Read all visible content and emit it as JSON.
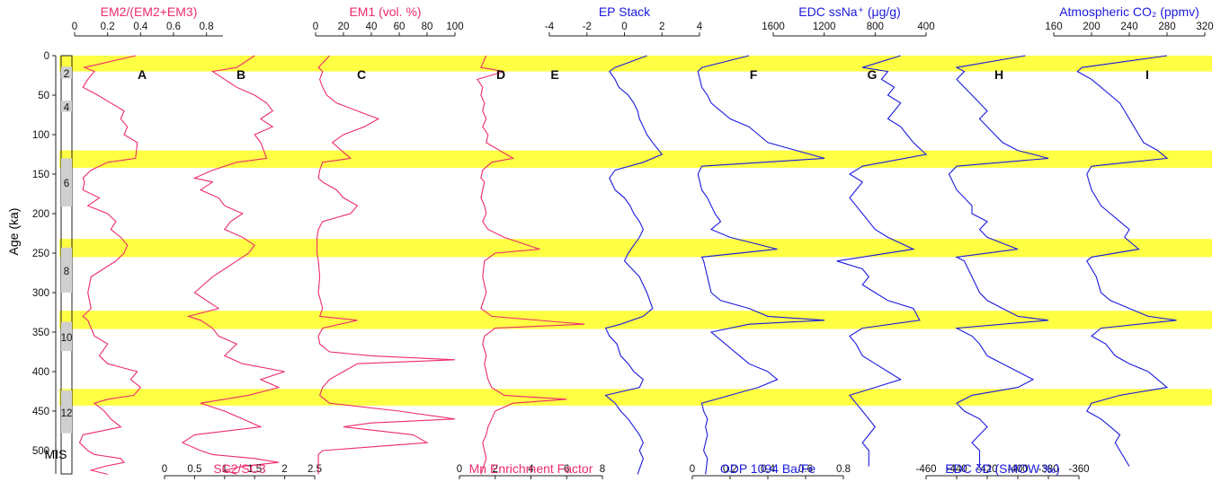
{
  "colors": {
    "pink": "#ee2b6c",
    "blue": "#1a1adf",
    "band": "#ffff44",
    "mis_gray": "#cfcfcf"
  },
  "chart_data": {
    "type": "line",
    "ylabel": "Age (ka)",
    "yticks": [
      "0",
      "50",
      "100",
      "150",
      "200",
      "250",
      "300",
      "350",
      "400",
      "450",
      "500"
    ],
    "ylim": [
      0,
      530
    ],
    "interglacial_bands": [
      [
        0,
        20
      ],
      [
        120,
        142
      ],
      [
        232,
        255
      ],
      [
        323,
        346
      ],
      [
        422,
        443
      ]
    ],
    "mis": {
      "label": "MIS",
      "stages": [
        "2",
        "4",
        "6",
        "8",
        "10",
        "12"
      ]
    },
    "panels": [
      {
        "letter": "A",
        "top_title": "EM2/(EM2+EM3)",
        "top_ticks": [
          "0",
          "0.2",
          "0.4",
          "0.6",
          "0.8"
        ],
        "xlim": [
          0,
          0.9
        ],
        "color": "pink",
        "x": [
          0.37,
          0.06,
          0.12,
          0.08,
          0.05,
          0.14,
          0.22,
          0.3,
          0.28,
          0.32,
          0.3,
          0.38,
          0.37,
          0.2,
          0.1,
          0.05,
          0.06,
          0.05,
          0.15,
          0.08,
          0.2,
          0.25,
          0.22,
          0.28,
          0.32,
          0.3,
          0.25,
          0.1,
          0.08,
          0.1,
          0.05,
          0.08,
          0.1,
          0.12,
          0.2,
          0.15,
          0.2,
          0.38,
          0.34,
          0.4,
          0.36,
          0.2,
          0.12,
          0.18,
          0.22,
          0.28,
          0.05,
          0.03,
          0.08,
          0.12,
          0.28,
          0.3,
          0.18,
          0.1,
          0.2
        ],
        "y": [
          0,
          15,
          20,
          30,
          40,
          50,
          60,
          70,
          80,
          90,
          100,
          110,
          130,
          135,
          145,
          155,
          160,
          170,
          180,
          190,
          200,
          210,
          220,
          230,
          240,
          250,
          260,
          280,
          300,
          320,
          330,
          335,
          345,
          355,
          365,
          380,
          390,
          400,
          410,
          420,
          430,
          435,
          440,
          450,
          460,
          470,
          480,
          490,
          500,
          505,
          510,
          515,
          520,
          525,
          530
        ]
      },
      {
        "letter": "B",
        "top_title": "",
        "top_ticks": [],
        "bottom_title": "SC2/SC3",
        "bottom_ticks": [
          "0",
          "0.5",
          "1",
          "1.5",
          "2",
          "2.5"
        ],
        "xlim": [
          0,
          2.5
        ],
        "color": "pink",
        "x": [
          1.5,
          1.2,
          0.8,
          1.0,
          1.2,
          1.5,
          1.7,
          1.8,
          1.6,
          1.8,
          1.5,
          1.6,
          1.7,
          1.2,
          0.8,
          0.5,
          0.8,
          0.6,
          0.9,
          1.0,
          1.3,
          1.1,
          1.0,
          1.3,
          1.5,
          1.4,
          1.2,
          0.8,
          0.5,
          0.9,
          0.4,
          0.6,
          0.8,
          0.9,
          1.2,
          1.0,
          1.3,
          2.0,
          1.6,
          1.9,
          1.4,
          1.0,
          0.6,
          1.0,
          1.3,
          1.6,
          0.5,
          0.3,
          0.6,
          0.8,
          1.5,
          1.9,
          1.3,
          1.0,
          1.2
        ],
        "y": [
          0,
          15,
          20,
          30,
          40,
          50,
          60,
          70,
          80,
          90,
          100,
          110,
          130,
          135,
          145,
          155,
          160,
          170,
          180,
          190,
          200,
          210,
          220,
          230,
          240,
          250,
          260,
          280,
          300,
          320,
          330,
          335,
          345,
          355,
          365,
          380,
          390,
          400,
          410,
          420,
          430,
          435,
          440,
          450,
          460,
          470,
          480,
          490,
          500,
          505,
          510,
          515,
          520,
          525,
          530
        ]
      },
      {
        "letter": "C",
        "top_title": "EM1 (vol. %)",
        "top_ticks": [
          "0",
          "20",
          "40",
          "60",
          "80",
          "100"
        ],
        "xlim": [
          0,
          100
        ],
        "color": "pink",
        "x": [
          10,
          2,
          5,
          3,
          5,
          8,
          15,
          30,
          45,
          35,
          20,
          12,
          25,
          5,
          3,
          2,
          5,
          15,
          20,
          30,
          25,
          5,
          2,
          1,
          1,
          1,
          2,
          3,
          2,
          5,
          3,
          30,
          5,
          2,
          3,
          10,
          40,
          100,
          30,
          20,
          10,
          5,
          3,
          10,
          60,
          100,
          40,
          20,
          70,
          80,
          5,
          2,
          2,
          2,
          2
        ],
        "y": [
          0,
          15,
          20,
          30,
          40,
          50,
          60,
          70,
          80,
          90,
          100,
          110,
          130,
          135,
          145,
          155,
          160,
          170,
          180,
          190,
          200,
          210,
          220,
          230,
          240,
          250,
          260,
          280,
          300,
          320,
          330,
          335,
          345,
          355,
          365,
          375,
          380,
          385,
          390,
          400,
          410,
          420,
          430,
          440,
          450,
          460,
          465,
          470,
          480,
          490,
          500,
          505,
          510,
          520,
          530
        ]
      },
      {
        "letter": "D",
        "top_title": "",
        "top_ticks": [],
        "bottom_title": "Mn Enrichment Factor",
        "bottom_ticks": [
          "0",
          "2",
          "4",
          "6",
          "8"
        ],
        "xlim": [
          0,
          8
        ],
        "color": "pink",
        "x": [
          1.5,
          1.2,
          2.5,
          1.0,
          1.3,
          1.2,
          1.4,
          1.3,
          1.5,
          1.3,
          1.6,
          1.5,
          3.0,
          1.8,
          1.3,
          1.2,
          1.4,
          1.3,
          1.2,
          1.4,
          1.5,
          1.3,
          1.6,
          2.5,
          4.5,
          2.0,
          1.4,
          1.3,
          1.5,
          1.2,
          1.8,
          7.0,
          2.0,
          1.4,
          1.3,
          1.5,
          1.4,
          1.5,
          1.6,
          1.8,
          2.5,
          6.0,
          3.0,
          2.0,
          1.8,
          1.6,
          1.5,
          1.3,
          1.4,
          1.5,
          1.2
        ],
        "y": [
          0,
          15,
          20,
          30,
          40,
          50,
          60,
          70,
          80,
          90,
          100,
          110,
          130,
          135,
          145,
          155,
          160,
          170,
          180,
          190,
          200,
          210,
          220,
          230,
          245,
          250,
          260,
          280,
          300,
          320,
          330,
          340,
          345,
          355,
          365,
          380,
          390,
          400,
          410,
          420,
          430,
          435,
          440,
          450,
          460,
          470,
          480,
          490,
          500,
          510,
          530
        ]
      },
      {
        "letter": "E",
        "top_title": "EP Stack",
        "top_ticks": [
          "-4",
          "-2",
          "0",
          "2",
          "4"
        ],
        "xlim": [
          -4,
          4
        ],
        "color": "blue",
        "x": [
          1.2,
          -0.5,
          -0.8,
          -0.5,
          -0.3,
          0.2,
          0.5,
          0.7,
          0.8,
          1.0,
          1.2,
          1.5,
          2.0,
          1.0,
          -0.5,
          -0.8,
          -0.5,
          0.0,
          0.3,
          0.5,
          0.8,
          1.0,
          0.8,
          0.5,
          0.2,
          0.0,
          0.4,
          0.8,
          1.2,
          1.5,
          1.0,
          -0.2,
          -1.0,
          -0.8,
          -0.4,
          -0.2,
          0.2,
          0.5,
          1.0,
          0.8,
          -1.0,
          -0.5,
          -0.2,
          0.2,
          0.5,
          0.8,
          1.0,
          0.8,
          1.0,
          0.7
        ],
        "y": [
          0,
          15,
          20,
          30,
          40,
          50,
          60,
          70,
          80,
          90,
          100,
          110,
          125,
          135,
          145,
          155,
          170,
          180,
          190,
          200,
          210,
          220,
          230,
          240,
          250,
          260,
          270,
          280,
          300,
          320,
          330,
          340,
          345,
          355,
          365,
          380,
          390,
          400,
          410,
          420,
          430,
          440,
          450,
          460,
          470,
          480,
          490,
          500,
          510,
          530
        ]
      },
      {
        "letter": "F",
        "top_title": "",
        "top_ticks": [],
        "bottom_title": "ODP 1094 Ba/Fe",
        "bottom_ticks": [
          "0",
          "0.2",
          "0.4",
          "0.6",
          "0.8"
        ],
        "xlim": [
          0,
          0.8
        ],
        "color": "blue",
        "x": [
          0.3,
          0.05,
          0.03,
          0.04,
          0.05,
          0.08,
          0.1,
          0.15,
          0.2,
          0.3,
          0.35,
          0.4,
          0.55,
          0.7,
          0.05,
          0.03,
          0.05,
          0.08,
          0.1,
          0.12,
          0.15,
          0.1,
          0.2,
          0.45,
          0.05,
          0.06,
          0.08,
          0.1,
          0.15,
          0.3,
          0.4,
          0.7,
          0.3,
          0.1,
          0.15,
          0.25,
          0.3,
          0.4,
          0.45,
          0.35,
          0.2,
          0.05,
          0.06,
          0.08,
          0.07,
          0.08,
          0.06,
          0.08,
          0.07
        ],
        "y": [
          0,
          15,
          20,
          30,
          40,
          50,
          60,
          70,
          80,
          90,
          100,
          110,
          120,
          130,
          140,
          150,
          170,
          180,
          190,
          200,
          210,
          220,
          230,
          245,
          255,
          260,
          280,
          300,
          310,
          320,
          330,
          335,
          340,
          350,
          360,
          380,
          390,
          400,
          410,
          420,
          430,
          440,
          450,
          460,
          470,
          480,
          500,
          510,
          530
        ]
      },
      {
        "letter": "G",
        "top_title": "EDC ssNa⁺ (μg/g)",
        "top_ticks": [
          "1600",
          "1200",
          "800",
          "400"
        ],
        "xlim": [
          1600,
          400
        ],
        "color": "blue",
        "x": [
          600,
          900,
          700,
          750,
          650,
          700,
          600,
          650,
          700,
          600,
          550,
          500,
          400,
          900,
          1000,
          900,
          950,
          1000,
          950,
          900,
          850,
          800,
          700,
          500,
          1100,
          900,
          850,
          900,
          800,
          700,
          500,
          450,
          900,
          1000,
          950,
          900,
          800,
          700,
          600,
          800,
          1000,
          950,
          900,
          850,
          800,
          850,
          900,
          850,
          850,
          850
        ],
        "y": [
          0,
          15,
          20,
          30,
          40,
          50,
          60,
          70,
          80,
          90,
          100,
          110,
          125,
          140,
          150,
          160,
          170,
          180,
          190,
          200,
          210,
          220,
          230,
          245,
          260,
          270,
          280,
          290,
          300,
          310,
          320,
          335,
          345,
          355,
          365,
          380,
          390,
          400,
          410,
          420,
          430,
          440,
          450,
          460,
          470,
          480,
          490,
          500,
          510,
          520
        ]
      },
      {
        "letter": "H",
        "top_title": "",
        "top_ticks": [],
        "bottom_title": "EDC δD (SMOW ‰)",
        "bottom_ticks": [
          "-460",
          "-440",
          "-420",
          "-400",
          "-380",
          "-360"
        ],
        "xlim": [
          -460,
          -360
        ],
        "color": "blue",
        "x": [
          -395,
          -440,
          -435,
          -440,
          -435,
          -430,
          -425,
          -420,
          -425,
          -420,
          -415,
          -410,
          -400,
          -380,
          -440,
          -445,
          -440,
          -435,
          -430,
          -430,
          -420,
          -425,
          -420,
          -400,
          -440,
          -435,
          -430,
          -425,
          -420,
          -410,
          -400,
          -380,
          -440,
          -430,
          -425,
          -420,
          -410,
          -400,
          -390,
          -400,
          -430,
          -440,
          -435,
          -425,
          -420,
          -425,
          -430,
          -425,
          -425,
          -425
        ],
        "y": [
          0,
          15,
          20,
          30,
          40,
          50,
          60,
          70,
          80,
          90,
          100,
          110,
          120,
          130,
          140,
          150,
          170,
          180,
          190,
          200,
          210,
          220,
          230,
          245,
          255,
          260,
          280,
          300,
          310,
          320,
          330,
          335,
          345,
          355,
          365,
          380,
          390,
          400,
          410,
          420,
          430,
          440,
          450,
          460,
          470,
          480,
          490,
          500,
          510,
          520
        ]
      },
      {
        "letter": "I",
        "top_title": "Atmospheric CO₂ (ppmv)",
        "top_ticks": [
          "160",
          "200",
          "240",
          "280",
          "320"
        ],
        "xlim": [
          160,
          320
        ],
        "color": "blue",
        "x": [
          280,
          190,
          185,
          200,
          210,
          220,
          230,
          235,
          240,
          245,
          250,
          255,
          270,
          280,
          200,
          195,
          200,
          205,
          210,
          220,
          230,
          240,
          235,
          250,
          200,
          195,
          205,
          210,
          220,
          240,
          260,
          290,
          210,
          200,
          215,
          225,
          240,
          260,
          270,
          280,
          230,
          200,
          195,
          210,
          220,
          230,
          225,
          230,
          235,
          240
        ],
        "y": [
          0,
          15,
          20,
          30,
          40,
          50,
          60,
          70,
          80,
          90,
          100,
          110,
          120,
          130,
          140,
          150,
          170,
          180,
          190,
          200,
          210,
          220,
          230,
          245,
          255,
          260,
          280,
          300,
          310,
          320,
          330,
          335,
          345,
          355,
          365,
          380,
          390,
          400,
          410,
          420,
          430,
          440,
          450,
          460,
          470,
          480,
          490,
          500,
          510,
          520
        ]
      }
    ]
  }
}
